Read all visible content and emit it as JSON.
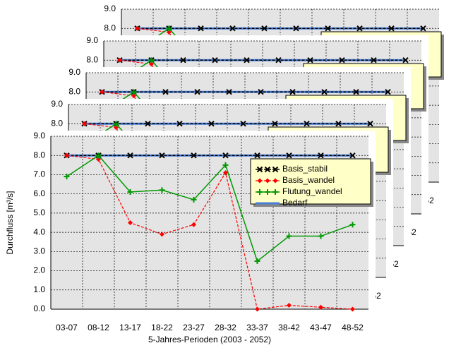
{
  "chart_data": {
    "type": "line",
    "y_label": "Durchfluss [m³/s]",
    "x_label": "5-Jahres-Perioden (2003 - 2052)",
    "categories": [
      "03-07",
      "08-12",
      "13-17",
      "18-22",
      "23-27",
      "28-32",
      "33-37",
      "38-42",
      "43-47",
      "48-52"
    ],
    "series": [
      {
        "name": "Basis_stabil",
        "color": "#000000",
        "marker": "x",
        "dash": true,
        "width": 1.5,
        "values": [
          8.0,
          8.0,
          8.0,
          8.0,
          8.0,
          8.0,
          8.0,
          8.0,
          8.0,
          8.0
        ]
      },
      {
        "name": "Basis_wandel",
        "color": "#ff0000",
        "marker": "diamond",
        "dash": true,
        "width": 1.2,
        "values": [
          8.0,
          7.8,
          4.5,
          3.9,
          4.4,
          7.1,
          0.0,
          0.2,
          0.1,
          0.0
        ]
      },
      {
        "name": "Flutung_wandel",
        "color": "#009900",
        "marker": "plus",
        "dash": false,
        "width": 1.5,
        "values": [
          6.9,
          8.0,
          6.1,
          6.2,
          5.7,
          7.5,
          2.5,
          3.8,
          3.8,
          4.4
        ]
      },
      {
        "name": "Bedarf",
        "color": "#4a7fd8",
        "marker": "none",
        "dash": false,
        "width": 3,
        "values": [
          8.0,
          8.0,
          8.0,
          8.0,
          8.0,
          8.0,
          8.0,
          8.0,
          8.0,
          8.0
        ]
      }
    ],
    "ylim": [
      0,
      9
    ],
    "yticks": [
      {
        "value": 0,
        "label": "0.0"
      },
      {
        "value": 1,
        "label": "1.0"
      },
      {
        "value": 2,
        "label": "2.0"
      },
      {
        "value": 3,
        "label": "3.0"
      },
      {
        "value": 4,
        "label": "4.0"
      },
      {
        "value": 5,
        "label": "5.0"
      },
      {
        "value": 6,
        "label": "6.0"
      },
      {
        "value": 7,
        "label": "7.0"
      },
      {
        "value": 8,
        "label": "8.0"
      },
      {
        "value": 9,
        "label": "9.0"
      }
    ],
    "grid": true,
    "plot_background": "#e4e4e4",
    "legend_background": "#ffffc8"
  }
}
